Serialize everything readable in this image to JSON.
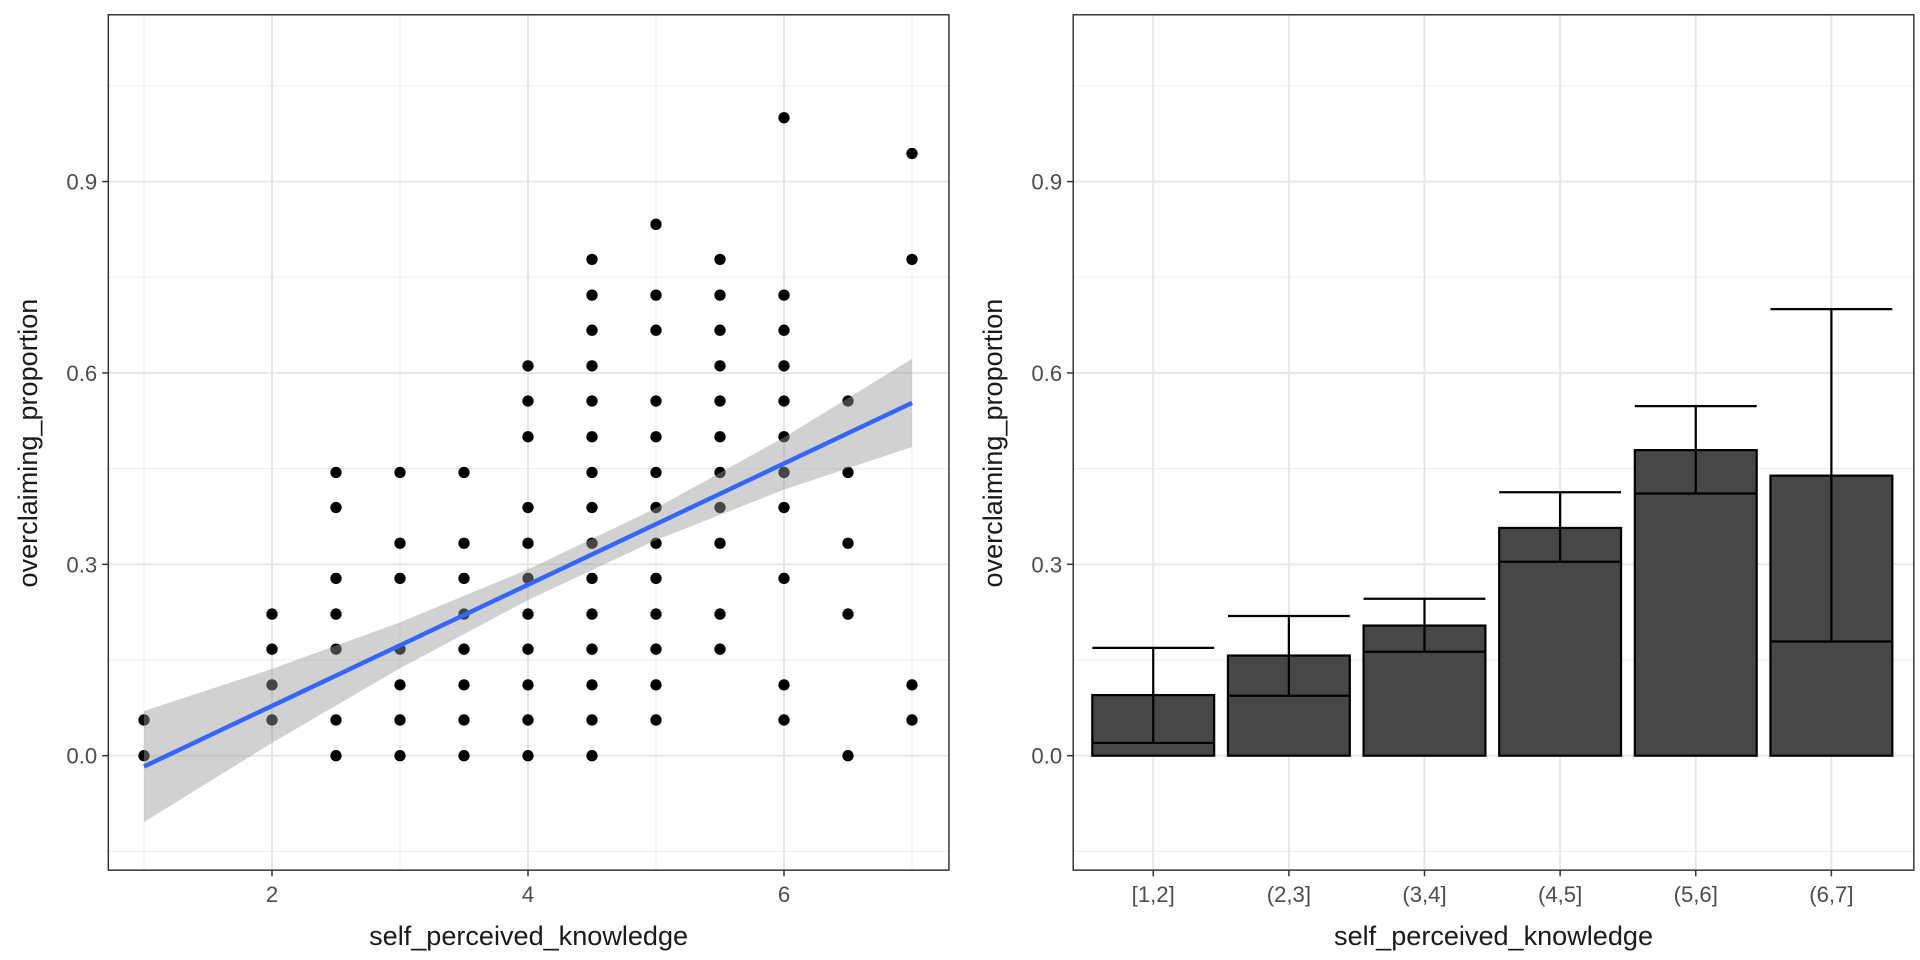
{
  "chart_data": [
    {
      "type": "scatter",
      "xlabel": "self_perceived_knowledge",
      "ylabel": "overclaiming_proportion",
      "xlim": [
        0.7,
        7.3
      ],
      "ylim": [
        -0.18,
        1.16
      ],
      "x_ticks": [
        2,
        4,
        6
      ],
      "x_tick_labels": [
        "2",
        "4",
        "6"
      ],
      "y_ticks": [
        0.0,
        0.3,
        0.6,
        0.9
      ],
      "y_tick_labels": [
        "0.0",
        "0.3",
        "0.6",
        "0.9"
      ],
      "grid": true,
      "point_color": "#000000",
      "points": [
        {
          "x": 1,
          "y": [
            0,
            0.056
          ]
        },
        {
          "x": 2,
          "y": [
            0.056,
            0.111,
            0.167,
            0.222
          ]
        },
        {
          "x": 2.5,
          "y": [
            0,
            0.056,
            0.167,
            0.222,
            0.278,
            0.389,
            0.444
          ]
        },
        {
          "x": 3,
          "y": [
            0,
            0.056,
            0.111,
            0.167,
            0.278,
            0.333,
            0.444
          ]
        },
        {
          "x": 3.5,
          "y": [
            0,
            0.056,
            0.111,
            0.167,
            0.222,
            0.278,
            0.333,
            0.444
          ]
        },
        {
          "x": 4,
          "y": [
            0,
            0.056,
            0.111,
            0.167,
            0.222,
            0.278,
            0.333,
            0.389,
            0.5,
            0.556,
            0.611
          ]
        },
        {
          "x": 4.5,
          "y": [
            0,
            0.056,
            0.111,
            0.167,
            0.222,
            0.278,
            0.333,
            0.389,
            0.444,
            0.5,
            0.556,
            0.611,
            0.667,
            0.722,
            0.778
          ]
        },
        {
          "x": 5,
          "y": [
            0.056,
            0.111,
            0.167,
            0.222,
            0.278,
            0.333,
            0.389,
            0.444,
            0.5,
            0.556,
            0.667,
            0.722,
            0.833
          ]
        },
        {
          "x": 5.5,
          "y": [
            0.167,
            0.222,
            0.333,
            0.389,
            0.444,
            0.5,
            0.556,
            0.611,
            0.667,
            0.722,
            0.778
          ]
        },
        {
          "x": 6,
          "y": [
            0.056,
            0.111,
            0.278,
            0.389,
            0.444,
            0.5,
            0.556,
            0.611,
            0.667,
            0.722,
            1.0
          ]
        },
        {
          "x": 6.5,
          "y": [
            0,
            0.222,
            0.333,
            0.444,
            0.556
          ]
        },
        {
          "x": 7,
          "y": [
            0.056,
            0.111,
            0.778,
            0.944
          ]
        }
      ],
      "fit": {
        "method": "linear",
        "color": "#3366FF",
        "band_color": "#999999",
        "x": [
          1,
          2,
          3,
          4,
          5,
          6,
          7
        ],
        "y": [
          -0.017,
          0.078,
          0.173,
          0.268,
          0.363,
          0.458,
          0.553
        ],
        "lower": [
          -0.104,
          0.02,
          0.137,
          0.244,
          0.338,
          0.417,
          0.484
        ],
        "upper": [
          0.07,
          0.136,
          0.209,
          0.292,
          0.388,
          0.499,
          0.622
        ]
      }
    },
    {
      "type": "bar",
      "xlabel": "self_perceived_knowledge",
      "ylabel": "overclaiming_proportion",
      "ylim": [
        -0.18,
        1.16
      ],
      "y_ticks": [
        0.0,
        0.3,
        0.6,
        0.9
      ],
      "y_tick_labels": [
        "0.0",
        "0.3",
        "0.6",
        "0.9"
      ],
      "grid": true,
      "bar_color": "#474747",
      "categories": [
        "[1,2]",
        "(2,3]",
        "(3,4]",
        "(4,5]",
        "(5,6]",
        "(6,7]"
      ],
      "values": [
        0.095,
        0.157,
        0.204,
        0.357,
        0.479,
        0.439
      ],
      "error_low": [
        0.02,
        0.094,
        0.163,
        0.304,
        0.411,
        0.179
      ],
      "error_high": [
        0.169,
        0.219,
        0.246,
        0.413,
        0.548,
        0.7
      ]
    }
  ]
}
